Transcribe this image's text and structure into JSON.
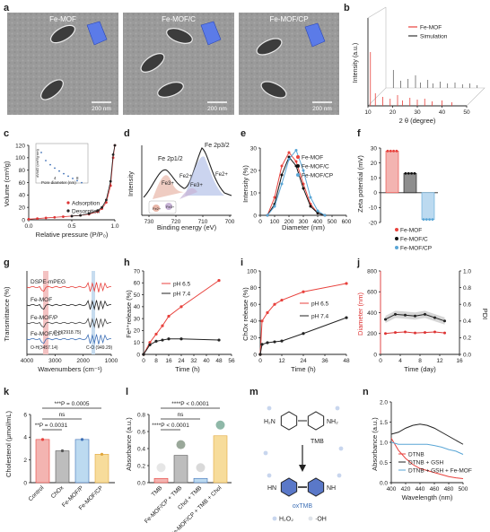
{
  "panels": {
    "a": {
      "letter": "a",
      "titles": [
        "Fe-MOF",
        "Fe-MOF/C",
        "Fe-MOF/CP"
      ],
      "scale": "200 nm"
    },
    "b": {
      "letter": "b",
      "ylabel": "Intensity (a.u.)",
      "xlabel": "2 θ (degree)",
      "xticks": [
        "10",
        "20",
        "30",
        "40",
        "50"
      ],
      "legend": [
        "Fe-MOF",
        "Simulation"
      ],
      "colors": [
        "#e8413c",
        "#333333"
      ]
    },
    "c": {
      "letter": "c",
      "ylabel": "Volume (cm³/g)",
      "xlabel": "Relative pressure (P/P₀)",
      "yticks": [
        "0",
        "20",
        "40",
        "60",
        "80",
        "100",
        "120"
      ],
      "xticks": [
        "0.0",
        "0.5",
        "1.0"
      ],
      "legend": [
        "Adsorption",
        "Desorption"
      ],
      "inset_ylabel": "dV/dD (cm³/g·nm)",
      "inset_xlabel": "Pore diameter (nm)",
      "inset_xticks": [
        "4",
        "8"
      ]
    },
    "d": {
      "letter": "d",
      "ylabel": "Intensity",
      "xlabel": "Binding energy (eV)",
      "xticks": [
        "730",
        "720",
        "710",
        "700"
      ],
      "labels": [
        "Fe 2p1/2",
        "Fe 2p3/2",
        "Fe3+",
        "Fe2+",
        "Fe3+",
        "Fe2+",
        "Fe3+",
        "Fe2+",
        "Fe2+",
        "Fe3+"
      ]
    },
    "e": {
      "letter": "e",
      "ylabel": "Intensity (%)",
      "xlabel": "Diameter (nm)",
      "yticks": [
        "0",
        "10",
        "20",
        "30"
      ],
      "xticks": [
        "0",
        "100",
        "200",
        "300",
        "400",
        "500",
        "600"
      ],
      "legend": [
        "Fe-MOF",
        "Fe-MOF/C",
        "Fe-MOF/CP"
      ],
      "colors": [
        "#e8413c",
        "#111111",
        "#5aa6d6"
      ]
    },
    "f": {
      "letter": "f",
      "ylabel": "Zeta potential (mV)",
      "yticks": [
        "-20",
        "-10",
        "0",
        "10",
        "20",
        "30"
      ],
      "legend": [
        "Fe-MOF",
        "Fe-MOF/C",
        "Fe-MOF/CP"
      ],
      "colors": [
        "#e8413c",
        "#111111",
        "#5aa6d6"
      ]
    },
    "g": {
      "letter": "g",
      "ylabel": "Transmittance (%)",
      "xlabel": "Wavenumbers (cm⁻¹)",
      "xticks": [
        "4000",
        "3000",
        "2000",
        "1000"
      ],
      "labels": [
        "DSPE-mPEG",
        "Fe-MOF",
        "Fe-MOF/P",
        "Fe-MOF/CP",
        "O-H(3457.14)",
        "C-H(2918.75)",
        "C-O (949.29)"
      ]
    },
    "h": {
      "letter": "h",
      "ylabel": "Fe³⁺release (%)",
      "xlabel": "Time (h)",
      "yticks": [
        "0",
        "10",
        "20",
        "30",
        "40",
        "50",
        "60",
        "70"
      ],
      "xticks": [
        "0",
        "8",
        "16",
        "24",
        "32",
        "40",
        "48",
        "56"
      ],
      "legend": [
        "pH 6.5",
        "pH 7.4"
      ]
    },
    "i": {
      "letter": "i",
      "ylabel": "ChOx release (%)",
      "xlabel": "Time (h)",
      "yticks": [
        "0",
        "20",
        "40",
        "60",
        "80",
        "100"
      ],
      "xticks": [
        "0",
        "12",
        "24",
        "36",
        "48"
      ],
      "legend": [
        "pH 6.5",
        "pH 7.4"
      ]
    },
    "j": {
      "letter": "j",
      "ylabel": "Diameter (nm)",
      "ylabel2": "PDI",
      "xlabel": "Time (day)",
      "yticks": [
        "0",
        "200",
        "400",
        "600",
        "800"
      ],
      "yticks2": [
        "0.0",
        "0.2",
        "0.4",
        "0.6",
        "0.8",
        "1.0"
      ],
      "xticks": [
        "0",
        "4",
        "8",
        "12",
        "16"
      ]
    },
    "k": {
      "letter": "k",
      "ylabel": "Cholesterol (μmol/mL)",
      "yticks": [
        "0",
        "2",
        "4",
        "6"
      ],
      "cats": [
        "Control",
        "ChOx",
        "Fe-MOF/P",
        "Fe-MOF/CP"
      ],
      "sig": [
        "***P = 0.0005",
        "ns",
        "**P = 0.0031"
      ]
    },
    "l": {
      "letter": "l",
      "ylabel": "Absorbance (a.u.)",
      "yticks": [
        "0.0",
        "0.2",
        "0.4",
        "0.6",
        "0.8"
      ],
      "cats": [
        "TMB",
        "Fe-MOF/CP + TMB",
        "Chol + TMB",
        "Fe-MOF/CP + TMB + Chol"
      ],
      "sig": [
        "****P < 0.0001",
        "ns",
        "****P < 0.0001"
      ]
    },
    "m": {
      "letter": "m",
      "labels": [
        "TMB",
        "oxTMB",
        "H₂O₂",
        "·OH",
        "H₂N",
        "NH₂",
        "HN",
        "NH"
      ]
    },
    "n": {
      "letter": "n",
      "ylabel": "Absorbance (a.u.)",
      "xlabel": "Wavelength (nm)",
      "yticks": [
        "0.0",
        "0.5",
        "1.0",
        "1.5",
        "2.0"
      ],
      "xticks": [
        "400",
        "420",
        "440",
        "460",
        "480",
        "500"
      ],
      "legend": [
        "DTNB",
        "DTNB + GSH",
        "DTNB + GSH + Fe-MOF"
      ]
    }
  },
  "chart_data": [
    {
      "type": "line",
      "panel": "c",
      "series": [
        {
          "name": "Adsorption",
          "x": [
            0,
            0.1,
            0.2,
            0.3,
            0.4,
            0.5,
            0.6,
            0.7,
            0.8,
            0.85,
            0.9,
            0.95,
            0.98,
            1.0
          ],
          "y": [
            1,
            2,
            3,
            4,
            5,
            6,
            7,
            9,
            13,
            18,
            28,
            55,
            100,
            120
          ]
        },
        {
          "name": "Desorption",
          "x": [
            0.5,
            0.6,
            0.7,
            0.8,
            0.85,
            0.9,
            0.95,
            0.98,
            1.0
          ],
          "y": [
            6,
            7,
            10,
            15,
            20,
            32,
            62,
            105,
            120
          ]
        }
      ]
    },
    {
      "type": "line",
      "panel": "e",
      "x": [
        50,
        100,
        150,
        200,
        250,
        300,
        350,
        400,
        450
      ],
      "series": [
        {
          "name": "Fe-MOF",
          "y": [
            0,
            8,
            22,
            28,
            24,
            14,
            5,
            1,
            0
          ]
        },
        {
          "name": "Fe-MOF/C",
          "y": [
            0,
            5,
            18,
            26,
            22,
            12,
            4,
            1,
            0
          ]
        },
        {
          "name": "Fe-MOF/CP",
          "y": [
            0,
            4,
            14,
            25,
            29,
            20,
            8,
            2,
            0
          ]
        }
      ]
    },
    {
      "type": "bar",
      "panel": "f",
      "categories": [
        "Fe-MOF",
        "Fe-MOF/C",
        "Fe-MOF/CP"
      ],
      "values": [
        28,
        13,
        -18
      ]
    },
    {
      "type": "line",
      "panel": "h",
      "x": [
        0,
        4,
        8,
        12,
        16,
        24,
        48
      ],
      "series": [
        {
          "name": "pH 6.5",
          "y": [
            0,
            10,
            17,
            24,
            32,
            40,
            62
          ]
        },
        {
          "name": "pH 7.4",
          "y": [
            0,
            8,
            11,
            12,
            13,
            13,
            12
          ]
        }
      ]
    },
    {
      "type": "line",
      "panel": "i",
      "x": [
        0,
        1,
        4,
        8,
        12,
        24,
        48
      ],
      "series": [
        {
          "name": "pH 6.5",
          "y": [
            0,
            40,
            50,
            60,
            65,
            75,
            85
          ]
        },
        {
          "name": "pH 7.4",
          "y": [
            0,
            12,
            14,
            15,
            16,
            25,
            44
          ]
        }
      ]
    },
    {
      "type": "line",
      "panel": "j",
      "x": [
        1,
        3,
        5,
        7,
        9,
        11,
        13
      ],
      "series": [
        {
          "name": "Diameter",
          "y": [
            200,
            210,
            215,
            205,
            210,
            215,
            205
          ]
        },
        {
          "name": "PDI",
          "y": [
            0.42,
            0.48,
            0.47,
            0.46,
            0.48,
            0.44,
            0.4
          ]
        }
      ]
    },
    {
      "type": "bar",
      "panel": "k",
      "categories": [
        "Control",
        "ChOx",
        "Fe-MOF/P",
        "Fe-MOF/CP"
      ],
      "values": [
        3.8,
        2.8,
        3.8,
        2.5
      ]
    },
    {
      "type": "bar",
      "panel": "l",
      "categories": [
        "TMB",
        "Fe-MOF/CP + TMB",
        "Chol + TMB",
        "Fe-MOF/CP + TMB + Chol"
      ],
      "values": [
        0.05,
        0.32,
        0.05,
        0.55
      ]
    },
    {
      "type": "line",
      "panel": "n",
      "x": [
        400,
        410,
        420,
        430,
        440,
        450,
        460,
        470,
        480,
        490,
        500
      ],
      "series": [
        {
          "name": "DTNB",
          "y": [
            1.1,
            0.8,
            0.6,
            0.45,
            0.35,
            0.3,
            0.25,
            0.2,
            0.15,
            0.12,
            0.1
          ]
        },
        {
          "name": "DTNB + GSH",
          "y": [
            1.2,
            1.25,
            1.35,
            1.42,
            1.45,
            1.42,
            1.35,
            1.25,
            1.15,
            1.05,
            0.95
          ]
        },
        {
          "name": "DTNB + GSH + Fe-MOF",
          "y": [
            1.0,
            0.95,
            0.95,
            0.95,
            0.95,
            0.95,
            0.92,
            0.88,
            0.82,
            0.78,
            0.7
          ]
        }
      ]
    }
  ]
}
